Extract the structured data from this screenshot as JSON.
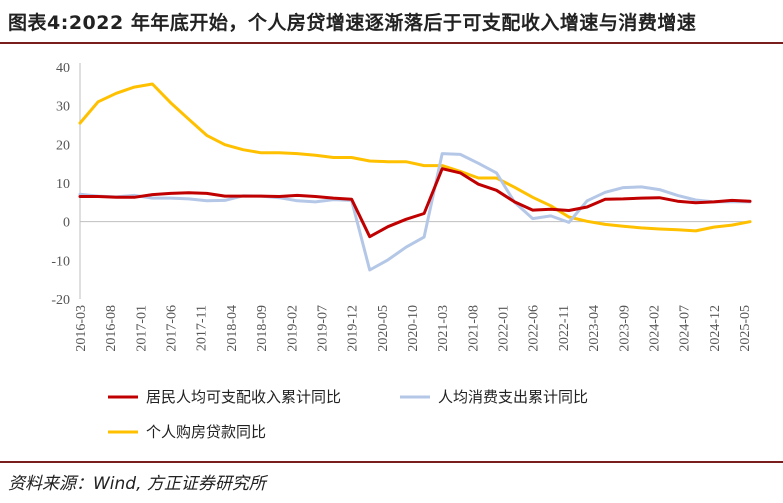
{
  "header": {
    "title": "图表4:2022 年年底开始，个人房贷增速逐渐落后于可支配收入增速与消费增速"
  },
  "footer": {
    "source": "资料来源：Wind, 方正证券研究所"
  },
  "colors": {
    "income": "#c00000",
    "consumption": "#b4c7e7",
    "mortgage": "#ffc000",
    "axis": "#bfbfbf",
    "rule": "#7a1d1d"
  },
  "chart_data": {
    "type": "line",
    "x_ticks": [
      "2016-03",
      "2016-08",
      "2017-01",
      "2017-06",
      "2017-11",
      "2018-04",
      "2018-09",
      "2019-02",
      "2019-07",
      "2019-12",
      "2020-05",
      "2020-10",
      "2021-03",
      "2021-08",
      "2022-01",
      "2022-06",
      "2022-11",
      "2023-04",
      "2023-09",
      "2024-02",
      "2024-07",
      "2024-12",
      "2025-05"
    ],
    "ylim": [
      -20,
      40
    ],
    "y_ticks": [
      -20,
      -10,
      0,
      10,
      20,
      30,
      40
    ],
    "legend_position": "bottom",
    "series": [
      {
        "name": "居民人均可支配收入累计同比",
        "color": "#c00000",
        "points": [
          [
            "2016-03",
            6.5
          ],
          [
            "2016-06",
            6.5
          ],
          [
            "2016-09",
            6.3
          ],
          [
            "2016-12",
            6.3
          ],
          [
            "2017-03",
            7.0
          ],
          [
            "2017-06",
            7.3
          ],
          [
            "2017-09",
            7.5
          ],
          [
            "2017-12",
            7.3
          ],
          [
            "2018-03",
            6.6
          ],
          [
            "2018-06",
            6.6
          ],
          [
            "2018-09",
            6.6
          ],
          [
            "2018-12",
            6.5
          ],
          [
            "2019-03",
            6.8
          ],
          [
            "2019-06",
            6.5
          ],
          [
            "2019-09",
            6.1
          ],
          [
            "2019-12",
            5.8
          ],
          [
            "2020-03",
            -3.9
          ],
          [
            "2020-06",
            -1.3
          ],
          [
            "2020-09",
            0.6
          ],
          [
            "2020-12",
            2.1
          ],
          [
            "2021-03",
            13.7
          ],
          [
            "2021-06",
            12.6
          ],
          [
            "2021-09",
            9.7
          ],
          [
            "2021-12",
            8.1
          ],
          [
            "2022-03",
            5.1
          ],
          [
            "2022-06",
            3.0
          ],
          [
            "2022-09",
            3.2
          ],
          [
            "2022-12",
            2.9
          ],
          [
            "2023-03",
            3.8
          ],
          [
            "2023-06",
            5.8
          ],
          [
            "2023-09",
            5.9
          ],
          [
            "2023-12",
            6.1
          ],
          [
            "2024-03",
            6.2
          ],
          [
            "2024-06",
            5.3
          ],
          [
            "2024-09",
            4.9
          ],
          [
            "2024-12",
            5.1
          ],
          [
            "2025-03",
            5.5
          ],
          [
            "2025-06",
            5.3
          ]
        ]
      },
      {
        "name": "人均消费支出累计同比",
        "color": "#b4c7e7",
        "points": [
          [
            "2016-03",
            7.1
          ],
          [
            "2016-06",
            6.6
          ],
          [
            "2016-09",
            6.4
          ],
          [
            "2016-12",
            6.8
          ],
          [
            "2017-03",
            6.1
          ],
          [
            "2017-06",
            6.1
          ],
          [
            "2017-09",
            5.9
          ],
          [
            "2017-12",
            5.4
          ],
          [
            "2018-03",
            5.5
          ],
          [
            "2018-06",
            6.7
          ],
          [
            "2018-09",
            6.6
          ],
          [
            "2018-12",
            6.2
          ],
          [
            "2019-03",
            5.4
          ],
          [
            "2019-06",
            5.1
          ],
          [
            "2019-09",
            5.7
          ],
          [
            "2019-12",
            5.5
          ],
          [
            "2020-03",
            -12.5
          ],
          [
            "2020-06",
            -9.9
          ],
          [
            "2020-09",
            -6.6
          ],
          [
            "2020-12",
            -4.0
          ],
          [
            "2021-03",
            17.6
          ],
          [
            "2021-06",
            17.4
          ],
          [
            "2021-09",
            15.1
          ],
          [
            "2021-12",
            12.6
          ],
          [
            "2022-03",
            5.0
          ],
          [
            "2022-06",
            0.8
          ],
          [
            "2022-09",
            1.5
          ],
          [
            "2022-12",
            -0.2
          ],
          [
            "2023-03",
            5.4
          ],
          [
            "2023-06",
            7.6
          ],
          [
            "2023-09",
            8.8
          ],
          [
            "2023-12",
            9.0
          ],
          [
            "2024-03",
            8.3
          ],
          [
            "2024-06",
            6.8
          ],
          [
            "2024-09",
            5.6
          ],
          [
            "2024-12",
            5.1
          ],
          [
            "2025-03",
            5.2
          ],
          [
            "2025-06",
            5.1
          ]
        ]
      },
      {
        "name": "个人购房贷款同比",
        "color": "#ffc000",
        "points": [
          [
            "2016-03",
            25.5
          ],
          [
            "2016-06",
            31.0
          ],
          [
            "2016-09",
            33.2
          ],
          [
            "2016-12",
            34.8
          ],
          [
            "2017-03",
            35.6
          ],
          [
            "2017-06",
            30.8
          ],
          [
            "2017-09",
            26.5
          ],
          [
            "2017-12",
            22.3
          ],
          [
            "2018-03",
            19.9
          ],
          [
            "2018-06",
            18.6
          ],
          [
            "2018-09",
            17.8
          ],
          [
            "2018-12",
            17.8
          ],
          [
            "2019-03",
            17.6
          ],
          [
            "2019-06",
            17.2
          ],
          [
            "2019-09",
            16.6
          ],
          [
            "2019-12",
            16.6
          ],
          [
            "2020-03",
            15.7
          ],
          [
            "2020-06",
            15.5
          ],
          [
            "2020-09",
            15.5
          ],
          [
            "2020-12",
            14.5
          ],
          [
            "2021-03",
            14.5
          ],
          [
            "2021-06",
            13.0
          ],
          [
            "2021-09",
            11.3
          ],
          [
            "2021-12",
            11.3
          ],
          [
            "2022-03",
            8.9
          ],
          [
            "2022-06",
            6.3
          ],
          [
            "2022-09",
            4.1
          ],
          [
            "2022-12",
            1.2
          ],
          [
            "2023-03",
            0.1
          ],
          [
            "2023-06",
            -0.7
          ],
          [
            "2023-09",
            -1.2
          ],
          [
            "2023-12",
            -1.6
          ],
          [
            "2024-03",
            -1.9
          ],
          [
            "2024-06",
            -2.1
          ],
          [
            "2024-09",
            -2.4
          ],
          [
            "2024-12",
            -1.4
          ],
          [
            "2025-03",
            -0.9
          ],
          [
            "2025-06",
            0.0
          ]
        ]
      }
    ]
  }
}
